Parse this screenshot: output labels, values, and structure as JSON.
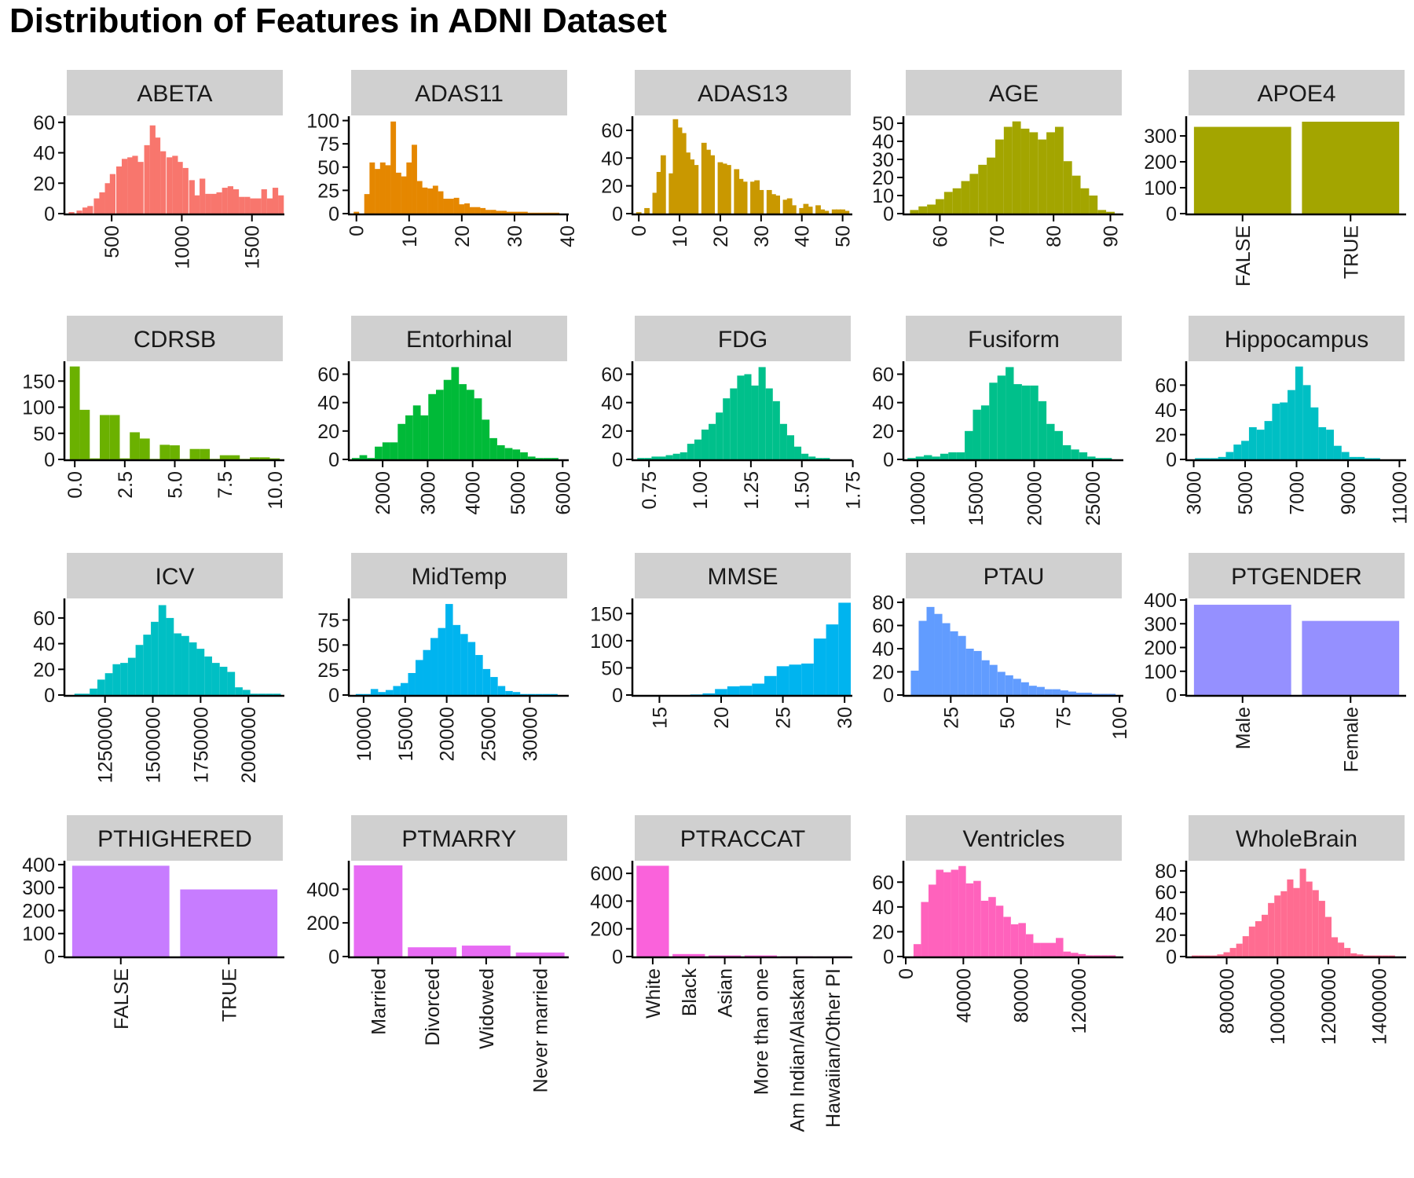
{
  "title": "Distribution of Features in ADNI Dataset",
  "chart_data": [
    {
      "name": "ABETA",
      "type": "histogram",
      "color": "#F8766D",
      "x": [
        214,
        270,
        312,
        347,
        393,
        432,
        472,
        507,
        553,
        592,
        632,
        667,
        707,
        752,
        792,
        827,
        867,
        912,
        952,
        987,
        1027,
        1072,
        1107,
        1147,
        1187,
        1227,
        1267,
        1307,
        1347,
        1387,
        1427,
        1467,
        1507,
        1547,
        1587,
        1627,
        1667,
        1707
      ],
      "values": [
        1,
        2,
        4,
        5,
        10,
        14,
        20,
        26,
        31,
        36,
        37,
        38,
        34,
        45,
        58,
        50,
        41,
        37,
        38,
        34,
        30,
        22,
        12,
        23,
        13,
        13,
        14,
        17,
        18,
        16,
        11,
        11,
        10,
        10,
        16,
        10,
        17,
        12
      ],
      "xlim": [
        180,
        1720
      ],
      "ylim": [
        0,
        63
      ],
      "xticks": [
        500,
        1000,
        1500
      ],
      "yticks": [
        0,
        20,
        40,
        60
      ],
      "xtick_rotate": true
    },
    {
      "name": "ADAS11",
      "type": "histogram",
      "color": "#E58700",
      "x": [
        0,
        2,
        3,
        4,
        5,
        6,
        7,
        8,
        9,
        10,
        11,
        12,
        13,
        14,
        15,
        16,
        17,
        18,
        19,
        20,
        21,
        22,
        23,
        24,
        25,
        26,
        27,
        28,
        29,
        30,
        31,
        32,
        33,
        34,
        35,
        36,
        37,
        38
      ],
      "values": [
        2,
        21,
        55,
        48,
        55,
        52,
        99,
        44,
        40,
        55,
        74,
        35,
        28,
        27,
        30,
        24,
        16,
        16,
        17,
        10,
        11,
        7,
        7,
        6,
        4,
        4,
        3,
        3,
        2,
        2,
        2,
        2,
        1,
        1,
        1,
        1,
        1,
        1
      ],
      "xlim": [
        -1,
        40
      ],
      "ylim": [
        0,
        103
      ],
      "xticks": [
        0,
        10,
        20,
        30,
        40
      ],
      "yticks": [
        0,
        25,
        50,
        75,
        100
      ],
      "xtick_rotate": true
    },
    {
      "name": "ADAS13",
      "type": "histogram",
      "color": "#C99800",
      "x": [
        0,
        2,
        4,
        5,
        6,
        8,
        9,
        10,
        11,
        12,
        13,
        14,
        16,
        17,
        18,
        20,
        21,
        22,
        24,
        25,
        26,
        28,
        29,
        30,
        32,
        33,
        34,
        36,
        37,
        38,
        40,
        41,
        42,
        44,
        45,
        46,
        48,
        49,
        50,
        51
      ],
      "values": [
        1,
        4,
        15,
        30,
        42,
        29,
        68,
        62,
        58,
        44,
        39,
        35,
        51,
        46,
        42,
        37,
        36,
        35,
        32,
        25,
        23,
        23,
        24,
        17,
        17,
        14,
        13,
        10,
        11,
        6,
        4,
        7,
        5,
        6,
        3,
        2,
        3,
        3,
        3,
        2
      ],
      "xlim": [
        -1,
        52
      ],
      "ylim": [
        0,
        69
      ],
      "xticks": [
        0,
        10,
        20,
        30,
        40,
        50
      ],
      "yticks": [
        0,
        20,
        40,
        60
      ],
      "xtick_rotate": true
    },
    {
      "name": "AGE",
      "type": "histogram",
      "color": "#A3A500",
      "x": [
        55.5,
        57,
        58.5,
        60,
        61.5,
        63,
        64.5,
        66,
        67.5,
        69,
        70.5,
        72,
        73.5,
        75,
        76.5,
        78,
        79.5,
        81,
        82.5,
        84,
        85.5,
        87,
        88.5,
        90
      ],
      "values": [
        2,
        4,
        5,
        8,
        12,
        14,
        18,
        22,
        27,
        31,
        41,
        48,
        51,
        47,
        45,
        41,
        45,
        48,
        29,
        21,
        14,
        10,
        2,
        1
      ],
      "xlim": [
        54,
        92
      ],
      "ylim": [
        0,
        53
      ],
      "xticks": [
        60,
        70,
        80,
        90
      ],
      "yticks": [
        0,
        10,
        20,
        30,
        40,
        50
      ],
      "xtick_rotate": true
    },
    {
      "name": "APOE4",
      "type": "bar",
      "color": "#A3A500",
      "categories": [
        "FALSE",
        "TRUE"
      ],
      "values": [
        335,
        355
      ],
      "ylim": [
        0,
        370
      ],
      "yticks": [
        0,
        100,
        200,
        300
      ],
      "xtick_rotate": true
    },
    {
      "name": "CDRSB",
      "type": "histogram",
      "color": "#6BB100",
      "x": [
        0,
        0.5,
        1,
        1.5,
        2,
        2.5,
        3,
        3.5,
        4,
        4.5,
        5,
        5.5,
        6,
        6.5,
        7,
        7.5,
        8,
        8.5,
        9,
        9.5,
        10
      ],
      "values": [
        178,
        95,
        2,
        85,
        85,
        2,
        52,
        40,
        1,
        28,
        27,
        1,
        20,
        20,
        1,
        8,
        8,
        1,
        4,
        4,
        2
      ],
      "xlim": [
        -0.4,
        10.4
      ],
      "ylim": [
        0,
        185
      ],
      "xticks": [
        "0.0",
        "2.5",
        "5.0",
        "7.5",
        "10.0"
      ],
      "yticks": [
        0,
        50,
        100,
        150
      ],
      "xtick_rotate": true
    },
    {
      "name": "Entorhinal",
      "type": "histogram",
      "color": "#00BA38",
      "x": [
        1400,
        1570,
        1740,
        1910,
        2080,
        2250,
        2420,
        2590,
        2760,
        2930,
        3100,
        3270,
        3440,
        3610,
        3780,
        3950,
        4120,
        4290,
        4460,
        4630,
        4800,
        4970,
        5140,
        5310,
        5480,
        5650,
        5820
      ],
      "values": [
        1,
        3,
        1,
        9,
        12,
        12,
        25,
        31,
        38,
        31,
        46,
        49,
        56,
        65,
        53,
        49,
        43,
        28,
        15,
        10,
        8,
        7,
        5,
        2,
        1,
        1,
        1
      ],
      "xlim": [
        1300,
        6100
      ],
      "ylim": [
        0,
        68
      ],
      "xticks": [
        2000,
        3000,
        4000,
        5000,
        6000
      ],
      "yticks": [
        0,
        20,
        40,
        60
      ],
      "xtick_rotate": true
    },
    {
      "name": "FDG",
      "type": "histogram",
      "color": "#00C08B",
      "x": [
        0.71,
        0.745,
        0.78,
        0.815,
        0.85,
        0.885,
        0.92,
        0.955,
        0.99,
        1.025,
        1.06,
        1.095,
        1.13,
        1.165,
        1.2,
        1.235,
        1.27,
        1.305,
        1.34,
        1.375,
        1.41,
        1.445,
        1.48,
        1.515,
        1.55,
        1.585,
        1.62
      ],
      "values": [
        1,
        1,
        2,
        2,
        3,
        4,
        5,
        11,
        14,
        21,
        25,
        33,
        43,
        50,
        59,
        60,
        52,
        65,
        50,
        41,
        25,
        17,
        9,
        4,
        2,
        1,
        1
      ],
      "xlim": [
        0.68,
        1.74
      ],
      "ylim": [
        0,
        68
      ],
      "xticks": [
        "0.75",
        "1.00",
        "1.25",
        "1.50",
        "1.75"
      ],
      "yticks": [
        0,
        20,
        40,
        60
      ],
      "xtick_rotate": true
    },
    {
      "name": "Fusiform",
      "type": "histogram",
      "color": "#00C08B",
      "x": [
        9500,
        10200,
        10900,
        11600,
        12300,
        13000,
        13700,
        14400,
        15100,
        15800,
        16500,
        17200,
        17900,
        18600,
        19300,
        20000,
        20700,
        21400,
        22100,
        22800,
        23500,
        24200,
        24900,
        25600,
        26300
      ],
      "values": [
        1,
        2,
        3,
        2,
        4,
        5,
        5,
        20,
        35,
        38,
        54,
        59,
        65,
        53,
        52,
        52,
        41,
        25,
        20,
        10,
        7,
        5,
        2,
        1,
        1
      ],
      "xlim": [
        9000,
        27500
      ],
      "ylim": [
        0,
        68
      ],
      "xticks": [
        10000,
        15000,
        20000,
        25000
      ],
      "yticks": [
        0,
        20,
        40,
        60
      ],
      "xtick_rotate": true
    },
    {
      "name": "Hippocampus",
      "type": "histogram",
      "color": "#00BFC4",
      "x": [
        3200,
        3500,
        3800,
        4100,
        4400,
        4700,
        5000,
        5300,
        5600,
        5900,
        6200,
        6500,
        6800,
        7100,
        7400,
        7700,
        8000,
        8300,
        8600,
        8900,
        9200,
        9500,
        9800,
        10100
      ],
      "values": [
        1,
        1,
        1,
        2,
        6,
        12,
        15,
        26,
        24,
        31,
        45,
        46,
        56,
        75,
        60,
        42,
        26,
        24,
        11,
        6,
        2,
        2,
        1,
        1
      ],
      "xlim": [
        2800,
        11200
      ],
      "ylim": [
        0,
        78
      ],
      "xticks": [
        3000,
        5000,
        7000,
        9000,
        11000
      ],
      "yticks": [
        0,
        20,
        40,
        60
      ],
      "xtick_rotate": true
    },
    {
      "name": "ICV",
      "type": "histogram",
      "color": "#00BFC4",
      "x": [
        1110000,
        1150000,
        1190000,
        1230000,
        1270000,
        1310000,
        1350000,
        1390000,
        1430000,
        1470000,
        1510000,
        1550000,
        1590000,
        1630000,
        1670000,
        1710000,
        1750000,
        1790000,
        1830000,
        1870000,
        1910000,
        1950000,
        1990000,
        2030000,
        2070000,
        2110000,
        2150000
      ],
      "values": [
        1,
        1,
        5,
        12,
        17,
        24,
        25,
        29,
        39,
        47,
        57,
        70,
        60,
        48,
        46,
        41,
        36,
        30,
        25,
        22,
        18,
        6,
        4,
        1,
        1,
        1,
        1
      ],
      "xlim": [
        1050000,
        2180000
      ],
      "ylim": [
        0,
        74
      ],
      "xticks": [
        1250000,
        1500000,
        1750000,
        2000000
      ],
      "yticks": [
        0,
        20,
        40,
        60
      ],
      "xtick_rotate": true
    },
    {
      "name": "MidTemp",
      "type": "histogram",
      "color": "#00B4EF",
      "x": [
        9500,
        10400,
        11300,
        12200,
        13100,
        14000,
        14900,
        15800,
        16700,
        17600,
        18500,
        19400,
        20300,
        21200,
        22100,
        23000,
        23900,
        24800,
        25700,
        26600,
        27500,
        28400,
        29300,
        30200,
        31100,
        32000,
        32900
      ],
      "values": [
        1,
        1,
        6,
        3,
        5,
        9,
        12,
        22,
        35,
        45,
        57,
        67,
        91,
        70,
        61,
        53,
        40,
        26,
        18,
        9,
        4,
        3,
        1,
        1,
        1,
        1,
        1
      ],
      "xlim": [
        8500,
        34500
      ],
      "ylim": [
        0,
        95
      ],
      "xticks": [
        10000,
        15000,
        20000,
        25000,
        30000
      ],
      "yticks": [
        0,
        25,
        50,
        75
      ],
      "xtick_rotate": true
    },
    {
      "name": "MMSE",
      "type": "histogram",
      "color": "#00B4EF",
      "x": [
        15,
        16,
        17,
        18,
        19,
        20,
        21,
        22,
        23,
        24,
        25,
        26,
        27,
        28,
        29,
        30
      ],
      "values": [
        0,
        0,
        0,
        1,
        3,
        11,
        16,
        17,
        21,
        35,
        53,
        56,
        58,
        104,
        130,
        170
      ],
      "xlim": [
        13,
        30.5
      ],
      "ylim": [
        0,
        175
      ],
      "xticks": [
        15,
        20,
        25,
        30
      ],
      "yticks": [
        0,
        50,
        100,
        150
      ],
      "xtick_rotate": true
    },
    {
      "name": "PTAU",
      "type": "histogram",
      "color": "#619CFF",
      "x": [
        9,
        12.5,
        16,
        19.5,
        23,
        26.5,
        30,
        33.5,
        37,
        40.5,
        44,
        47.5,
        51,
        54.5,
        58,
        61.5,
        65,
        68.5,
        72,
        75.5,
        79,
        82.5,
        86,
        89.5,
        93,
        96.5
      ],
      "values": [
        21,
        64,
        76,
        70,
        62,
        55,
        51,
        40,
        38,
        30,
        26,
        20,
        17,
        14,
        11,
        8,
        7,
        5,
        5,
        4,
        3,
        2,
        2,
        1,
        1,
        1
      ],
      "xlim": [
        5,
        101
      ],
      "ylim": [
        0,
        82
      ],
      "xticks": [
        25,
        50,
        75,
        100
      ],
      "yticks": [
        0,
        20,
        40,
        60,
        80
      ],
      "xtick_rotate": true
    },
    {
      "name": "PTGENDER",
      "type": "bar",
      "color": "#9590FF",
      "categories": [
        "Male",
        "Female"
      ],
      "values": [
        380,
        312
      ],
      "ylim": [
        0,
        400
      ],
      "yticks": [
        0,
        100,
        200,
        300,
        400
      ],
      "xtick_rotate": true
    },
    {
      "name": "PTHIGHERED",
      "type": "bar",
      "color": "#C77CFF",
      "categories": [
        "FALSE",
        "TRUE"
      ],
      "values": [
        395,
        292
      ],
      "ylim": [
        0,
        410
      ],
      "yticks": [
        0,
        100,
        200,
        300,
        400
      ],
      "xtick_rotate": true
    },
    {
      "name": "PTMARRY",
      "type": "bar",
      "color": "#E76BF3",
      "categories": [
        "Married",
        "Divorced",
        "Widowed",
        "Never married"
      ],
      "values": [
        542,
        55,
        65,
        24
      ],
      "ylim": [
        0,
        560
      ],
      "yticks": [
        0,
        200,
        400
      ],
      "xtick_rotate": true
    },
    {
      "name": "PTRACCAT",
      "type": "bar",
      "color": "#FA62DB",
      "categories": [
        "White",
        "Black",
        "Asian",
        "More than one",
        "Am Indian/Alaskan",
        "Hawaiian/Other PI"
      ],
      "values": [
        655,
        18,
        8,
        8,
        2,
        1
      ],
      "ylim": [
        0,
        680
      ],
      "yticks": [
        0,
        200,
        400,
        600
      ],
      "xtick_rotate": true
    },
    {
      "name": "Ventricles",
      "type": "histogram",
      "color": "#FF62BC",
      "x": [
        8000,
        13200,
        18400,
        23600,
        28800,
        34000,
        39200,
        44400,
        49600,
        54800,
        60000,
        65200,
        70400,
        75600,
        80800,
        86000,
        91200,
        96400,
        101600,
        106800,
        112000,
        117200,
        122400,
        127600,
        132800,
        138000,
        143200
      ],
      "values": [
        10,
        44,
        58,
        70,
        68,
        70,
        73,
        59,
        61,
        45,
        48,
        41,
        32,
        26,
        27,
        18,
        11,
        11,
        11,
        15,
        4,
        3,
        2,
        1,
        1,
        1,
        1
      ],
      "xlim": [
        0,
        150000
      ],
      "ylim": [
        0,
        76
      ],
      "xticks": [
        0,
        40000,
        80000,
        120000
      ],
      "yticks": [
        0,
        20,
        40,
        60
      ],
      "xtick_rotate": true
    },
    {
      "name": "WholeBrain",
      "type": "histogram",
      "color": "#FF6C91",
      "x": [
        675000,
        700000,
        725000,
        750000,
        775000,
        800000,
        825000,
        850000,
        875000,
        900000,
        925000,
        950000,
        975000,
        1000000,
        1025000,
        1050000,
        1075000,
        1100000,
        1125000,
        1150000,
        1175000,
        1200000,
        1225000,
        1250000,
        1275000,
        1300000,
        1325000,
        1350000,
        1375000,
        1400000,
        1425000,
        1450000
      ],
      "values": [
        1,
        1,
        1,
        1,
        2,
        4,
        8,
        12,
        19,
        28,
        33,
        39,
        50,
        57,
        61,
        72,
        64,
        82,
        70,
        62,
        52,
        37,
        18,
        13,
        8,
        3,
        2,
        1,
        1,
        1,
        1,
        1
      ],
      "xlim": [
        650000,
        1500000
      ],
      "ylim": [
        0,
        88
      ],
      "xticks": [
        800000,
        1000000,
        1200000,
        1400000
      ],
      "yticks": [
        0,
        20,
        40,
        60,
        80
      ],
      "xtick_rotate": true
    }
  ]
}
